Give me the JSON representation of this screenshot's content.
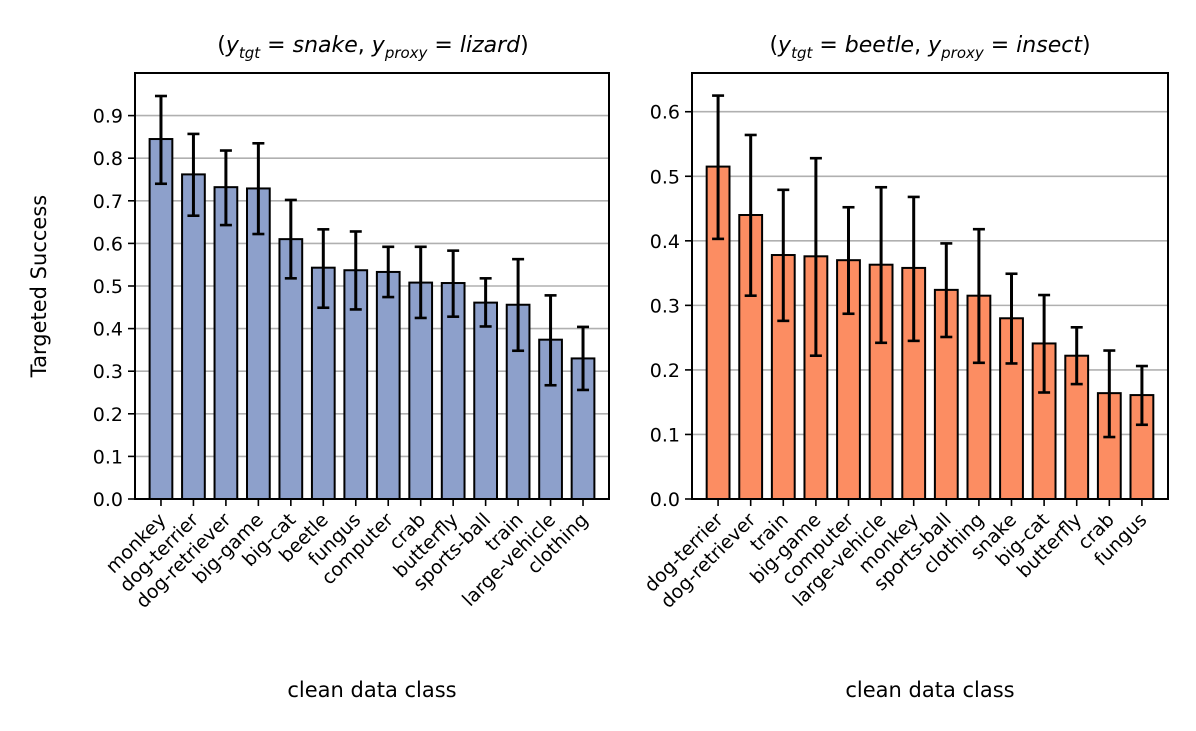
{
  "chart_data": [
    {
      "type": "bar",
      "title": "(y_tgt = snake, y_proxy = lizard)",
      "title_parts": {
        "open": "(",
        "y1": "y",
        "sub1": "tgt",
        "eq1": " = ",
        "val1": "snake",
        "comma": ", ",
        "y2": "y",
        "sub2": "proxy",
        "eq2": " = ",
        "val2": "lizard",
        "close": ")"
      },
      "xlabel": "clean data class",
      "ylabel": "Targeted Success",
      "ylim": [
        0,
        1.0
      ],
      "yticks": [
        0.0,
        0.1,
        0.2,
        0.3,
        0.4,
        0.5,
        0.6,
        0.7,
        0.8,
        0.9
      ],
      "grid": "horizontal",
      "bar_color": "#8da0cb",
      "categories": [
        "monkey",
        "dog-terrier",
        "dog-retriever",
        "big-game",
        "big-cat",
        "beetle",
        "fungus",
        "computer",
        "crab",
        "butterfly",
        "sports-ball",
        "train",
        "large-vehicle",
        "clothing"
      ],
      "values": [
        0.845,
        0.762,
        0.732,
        0.729,
        0.61,
        0.543,
        0.537,
        0.533,
        0.508,
        0.507,
        0.461,
        0.456,
        0.374,
        0.33
      ],
      "err_low": [
        0.74,
        0.665,
        0.643,
        0.622,
        0.518,
        0.449,
        0.445,
        0.474,
        0.425,
        0.428,
        0.405,
        0.348,
        0.267,
        0.256
      ],
      "err_high": [
        0.946,
        0.857,
        0.818,
        0.835,
        0.702,
        0.633,
        0.628,
        0.592,
        0.592,
        0.583,
        0.518,
        0.563,
        0.478,
        0.404
      ]
    },
    {
      "type": "bar",
      "title": "(y_tgt = beetle, y_proxy = insect)",
      "title_parts": {
        "open": "(",
        "y1": "y",
        "sub1": "tgt",
        "eq1": " = ",
        "val1": "beetle",
        "comma": ", ",
        "y2": "y",
        "sub2": "proxy",
        "eq2": " = ",
        "val2": "insect",
        "close": ")"
      },
      "xlabel": "clean data class",
      "ylabel": "",
      "ylim": [
        0,
        0.66
      ],
      "yticks": [
        0.0,
        0.1,
        0.2,
        0.3,
        0.4,
        0.5,
        0.6
      ],
      "grid": "horizontal",
      "bar_color": "#fc8d62",
      "categories": [
        "dog-terrier",
        "dog-retriever",
        "train",
        "big-game",
        "computer",
        "large-vehicle",
        "monkey",
        "sports-ball",
        "clothing",
        "snake",
        "big-cat",
        "butterfly",
        "crab",
        "fungus"
      ],
      "values": [
        0.515,
        0.44,
        0.378,
        0.376,
        0.37,
        0.363,
        0.358,
        0.324,
        0.315,
        0.28,
        0.241,
        0.222,
        0.164,
        0.161
      ],
      "err_low": [
        0.403,
        0.315,
        0.276,
        0.222,
        0.287,
        0.242,
        0.245,
        0.251,
        0.211,
        0.21,
        0.165,
        0.178,
        0.096,
        0.115
      ],
      "err_high": [
        0.625,
        0.564,
        0.479,
        0.528,
        0.452,
        0.483,
        0.468,
        0.396,
        0.418,
        0.349,
        0.316,
        0.266,
        0.23,
        0.206
      ]
    }
  ]
}
